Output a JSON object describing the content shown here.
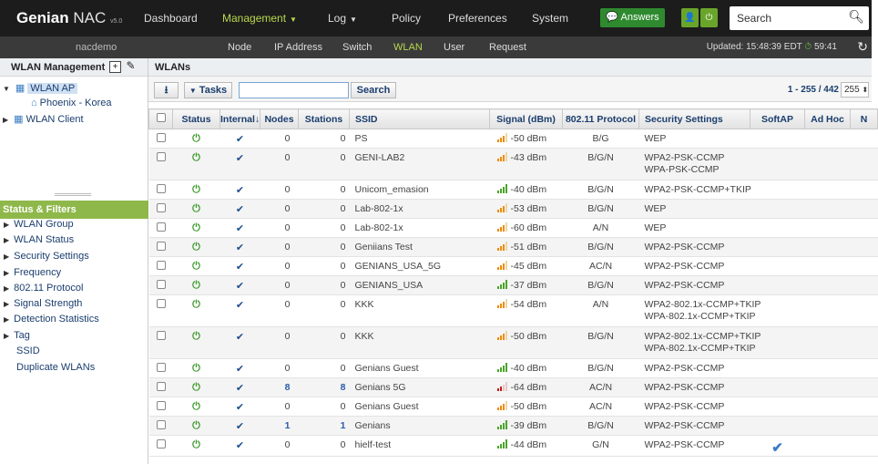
{
  "brand": {
    "name": "Genian",
    "product": "NAC",
    "version": "v5.0"
  },
  "nav": {
    "items": [
      {
        "label": "Dashboard",
        "active": false
      },
      {
        "label": "Management",
        "active": true
      },
      {
        "label": "Log",
        "active": false
      },
      {
        "label": "Policy",
        "active": false
      },
      {
        "label": "Preferences",
        "active": false
      },
      {
        "label": "System",
        "active": false
      }
    ],
    "answers_label": "Answers",
    "search_placeholder": "Search"
  },
  "subnav": {
    "site": "nacdemo",
    "items": [
      {
        "label": "Node",
        "active": false
      },
      {
        "label": "IP Address",
        "active": false
      },
      {
        "label": "Switch",
        "active": false
      },
      {
        "label": "WLAN",
        "active": true
      },
      {
        "label": "User",
        "active": false
      },
      {
        "label": "Request",
        "active": false
      }
    ],
    "updated_label": "Updated: 15:48:39 EDT",
    "timer": "59:41"
  },
  "left": {
    "title": "WLAN Management",
    "tree": [
      {
        "label": "WLAN AP"
      },
      {
        "label": "Phoenix - Korea"
      },
      {
        "label": "WLAN Client"
      }
    ],
    "filters_title": "Status & Filters",
    "filters": [
      {
        "label": "WLAN Group",
        "expandable": true
      },
      {
        "label": "WLAN Status",
        "expandable": true
      },
      {
        "label": "Security Settings",
        "expandable": true
      },
      {
        "label": "Frequency",
        "expandable": true
      },
      {
        "label": "802.11 Protocol",
        "expandable": true
      },
      {
        "label": "Signal Strength",
        "expandable": true
      },
      {
        "label": "Detection Statistics",
        "expandable": true
      },
      {
        "label": "Tag",
        "expandable": true
      },
      {
        "label": "SSID",
        "expandable": false
      },
      {
        "label": "Duplicate WLANs",
        "expandable": false
      }
    ]
  },
  "main": {
    "title": "WLANs",
    "tasks_label": "Tasks",
    "search_button": "Search",
    "search_value": "",
    "pager": "1 - 255 / 442",
    "page_size": "255"
  },
  "table": {
    "columns": [
      "Status",
      "Internal↓",
      "Nodes",
      "Stations",
      "SSID",
      "Signal (dBm)",
      "802.11 Protocol",
      "Security Settings",
      "SoftAP",
      "Ad Hoc",
      "N"
    ],
    "rows": [
      {
        "nodes": "0",
        "stations": "0",
        "ssid": "PS",
        "signal": "-50 dBm",
        "sig_level": "orange",
        "protocol": "B/G",
        "security": [
          "WEP"
        ],
        "softap": false
      },
      {
        "nodes": "0",
        "stations": "0",
        "ssid": "GENI-LAB2",
        "signal": "-43 dBm",
        "sig_level": "orange",
        "protocol": "B/G/N",
        "security": [
          "WPA2-PSK-CCMP",
          "WPA-PSK-CCMP"
        ],
        "softap": false
      },
      {
        "nodes": "0",
        "stations": "0",
        "ssid": "Unicom_emasion",
        "signal": "-40 dBm",
        "sig_level": "green",
        "protocol": "B/G/N",
        "security": [
          "WPA2-PSK-CCMP+TKIP"
        ],
        "softap": false
      },
      {
        "nodes": "0",
        "stations": "0",
        "ssid": "Lab-802-1x",
        "signal": "-53 dBm",
        "sig_level": "orange",
        "protocol": "B/G/N",
        "security": [
          "WEP"
        ],
        "softap": false
      },
      {
        "nodes": "0",
        "stations": "0",
        "ssid": "Lab-802-1x",
        "signal": "-60 dBm",
        "sig_level": "orange",
        "protocol": "A/N",
        "security": [
          "WEP"
        ],
        "softap": false
      },
      {
        "nodes": "0",
        "stations": "0",
        "ssid": "Geniians Test",
        "signal": "-51 dBm",
        "sig_level": "orange",
        "protocol": "B/G/N",
        "security": [
          "WPA2-PSK-CCMP"
        ],
        "softap": false
      },
      {
        "nodes": "0",
        "stations": "0",
        "ssid": "GENIANS_USA_5G",
        "signal": "-45 dBm",
        "sig_level": "orange",
        "protocol": "AC/N",
        "security": [
          "WPA2-PSK-CCMP"
        ],
        "softap": false
      },
      {
        "nodes": "0",
        "stations": "0",
        "ssid": "GENIANS_USA",
        "signal": "-37 dBm",
        "sig_level": "green",
        "protocol": "B/G/N",
        "security": [
          "WPA2-PSK-CCMP"
        ],
        "softap": false
      },
      {
        "nodes": "0",
        "stations": "0",
        "ssid": "KKK",
        "signal": "-54 dBm",
        "sig_level": "orange",
        "protocol": "A/N",
        "security": [
          "WPA2-802.1x-CCMP+TKIP",
          "WPA-802.1x-CCMP+TKIP"
        ],
        "softap": false
      },
      {
        "nodes": "0",
        "stations": "0",
        "ssid": "KKK",
        "signal": "-50 dBm",
        "sig_level": "orange",
        "protocol": "B/G/N",
        "security": [
          "WPA2-802.1x-CCMP+TKIP",
          "WPA-802.1x-CCMP+TKIP"
        ],
        "softap": false
      },
      {
        "nodes": "0",
        "stations": "0",
        "ssid": "Genians Guest",
        "signal": "-40 dBm",
        "sig_level": "green",
        "protocol": "B/G/N",
        "security": [
          "WPA2-PSK-CCMP"
        ],
        "softap": false
      },
      {
        "nodes": "8",
        "stations": "8",
        "ssid": "Genians 5G",
        "signal": "-64 dBm",
        "sig_level": "red",
        "protocol": "AC/N",
        "security": [
          "WPA2-PSK-CCMP"
        ],
        "softap": false
      },
      {
        "nodes": "0",
        "stations": "0",
        "ssid": "Genians Guest",
        "signal": "-50 dBm",
        "sig_level": "orange",
        "protocol": "AC/N",
        "security": [
          "WPA2-PSK-CCMP"
        ],
        "softap": false
      },
      {
        "nodes": "1",
        "stations": "1",
        "ssid": "Genians",
        "signal": "-39 dBm",
        "sig_level": "green",
        "protocol": "B/G/N",
        "security": [
          "WPA2-PSK-CCMP"
        ],
        "softap": false
      },
      {
        "nodes": "0",
        "stations": "0",
        "ssid": "hielf-test",
        "signal": "-44 dBm",
        "sig_level": "green",
        "protocol": "G/N",
        "security": [
          "WPA2-PSK-CCMP"
        ],
        "softap": true
      }
    ]
  }
}
